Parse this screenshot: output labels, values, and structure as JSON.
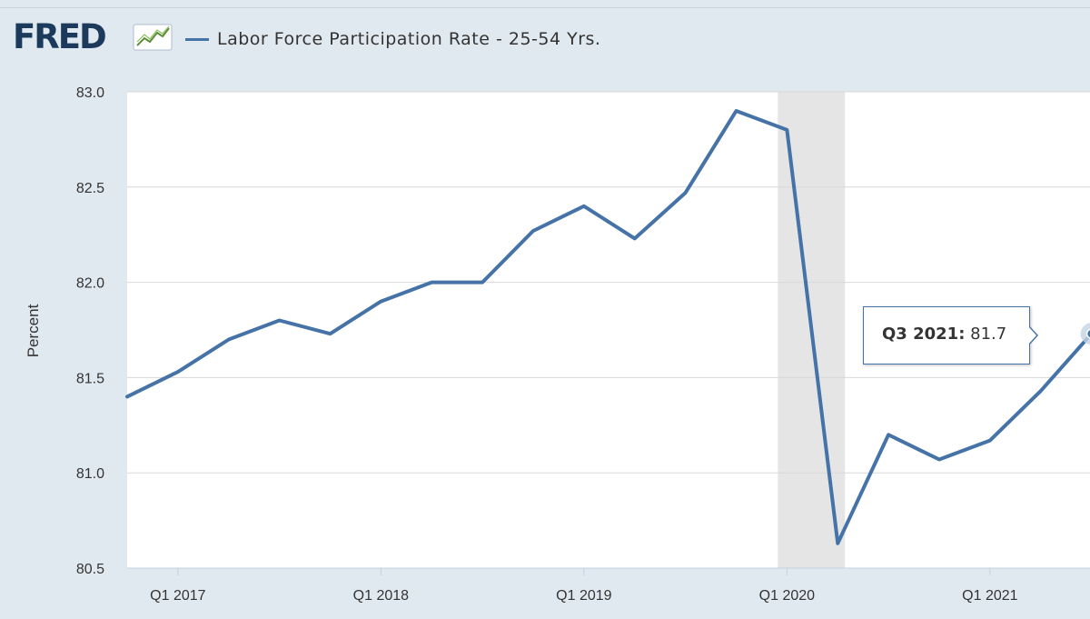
{
  "header": {
    "logo_text": "FRED",
    "logo_icon": "line-chart-icon"
  },
  "colors": {
    "background": "#e1e9f0",
    "plot_background": "#ffffff",
    "line": "#4572a7",
    "recession": "#e5e5e5",
    "logo": "#1b3a5c"
  },
  "tooltip": {
    "label": "Q3 2021:",
    "value": "81.7"
  },
  "chart_data": {
    "type": "line",
    "title": "",
    "legend_position": "top-left",
    "grid": true,
    "xlabel": "",
    "ylabel": "Percent",
    "ylim": [
      80.5,
      83.0
    ],
    "yticks": [
      "80.5",
      "81.0",
      "81.5",
      "82.0",
      "82.5",
      "83.0"
    ],
    "xtick_labels": [
      "Q1 2017",
      "Q1 2018",
      "Q1 2019",
      "Q1 2020",
      "Q1 2021"
    ],
    "x": [
      "Q4 2016",
      "Q1 2017",
      "Q2 2017",
      "Q3 2017",
      "Q4 2017",
      "Q1 2018",
      "Q2 2018",
      "Q3 2018",
      "Q4 2018",
      "Q1 2019",
      "Q2 2019",
      "Q3 2019",
      "Q4 2019",
      "Q1 2020",
      "Q2 2020",
      "Q3 2020",
      "Q4 2020",
      "Q1 2021",
      "Q2 2021",
      "Q3 2021"
    ],
    "series": [
      {
        "name": "Labor Force Participation Rate - 25-54 Yrs.",
        "values": [
          81.4,
          81.53,
          81.7,
          81.8,
          81.73,
          81.9,
          82.0,
          82.0,
          82.27,
          82.4,
          82.23,
          82.47,
          82.9,
          82.8,
          80.63,
          81.2,
          81.07,
          81.17,
          81.43,
          81.73
        ]
      }
    ],
    "recession": {
      "start": "Q1 2020",
      "end": "Q2 2020"
    }
  }
}
